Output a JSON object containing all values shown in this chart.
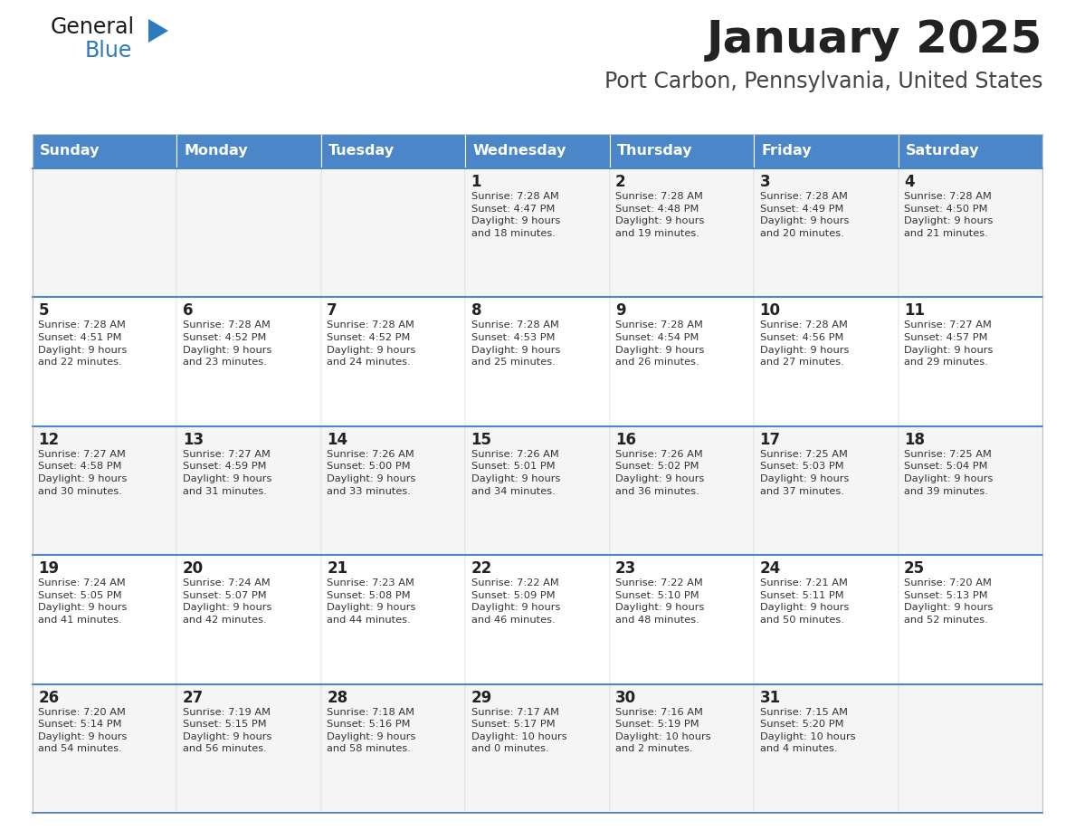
{
  "title": "January 2025",
  "subtitle": "Port Carbon, Pennsylvania, United States",
  "days_of_week": [
    "Sunday",
    "Monday",
    "Tuesday",
    "Wednesday",
    "Thursday",
    "Friday",
    "Saturday"
  ],
  "header_bg": "#4a86c8",
  "header_text_color": "#FFFFFF",
  "cell_bg_light": "#f5f5f5",
  "cell_bg_white": "#FFFFFF",
  "divider_color": "#4a86c8",
  "day_num_color": "#222222",
  "info_color": "#333333",
  "title_color": "#222222",
  "subtitle_color": "#444444",
  "logo_general_color": "#1a1a1a",
  "logo_blue_color": "#2e7abf",
  "logo_triangle_color": "#2e7abf",
  "calendar": [
    [
      {
        "day": "",
        "info": ""
      },
      {
        "day": "",
        "info": ""
      },
      {
        "day": "",
        "info": ""
      },
      {
        "day": "1",
        "info": "Sunrise: 7:28 AM\nSunset: 4:47 PM\nDaylight: 9 hours\nand 18 minutes."
      },
      {
        "day": "2",
        "info": "Sunrise: 7:28 AM\nSunset: 4:48 PM\nDaylight: 9 hours\nand 19 minutes."
      },
      {
        "day": "3",
        "info": "Sunrise: 7:28 AM\nSunset: 4:49 PM\nDaylight: 9 hours\nand 20 minutes."
      },
      {
        "day": "4",
        "info": "Sunrise: 7:28 AM\nSunset: 4:50 PM\nDaylight: 9 hours\nand 21 minutes."
      }
    ],
    [
      {
        "day": "5",
        "info": "Sunrise: 7:28 AM\nSunset: 4:51 PM\nDaylight: 9 hours\nand 22 minutes."
      },
      {
        "day": "6",
        "info": "Sunrise: 7:28 AM\nSunset: 4:52 PM\nDaylight: 9 hours\nand 23 minutes."
      },
      {
        "day": "7",
        "info": "Sunrise: 7:28 AM\nSunset: 4:52 PM\nDaylight: 9 hours\nand 24 minutes."
      },
      {
        "day": "8",
        "info": "Sunrise: 7:28 AM\nSunset: 4:53 PM\nDaylight: 9 hours\nand 25 minutes."
      },
      {
        "day": "9",
        "info": "Sunrise: 7:28 AM\nSunset: 4:54 PM\nDaylight: 9 hours\nand 26 minutes."
      },
      {
        "day": "10",
        "info": "Sunrise: 7:28 AM\nSunset: 4:56 PM\nDaylight: 9 hours\nand 27 minutes."
      },
      {
        "day": "11",
        "info": "Sunrise: 7:27 AM\nSunset: 4:57 PM\nDaylight: 9 hours\nand 29 minutes."
      }
    ],
    [
      {
        "day": "12",
        "info": "Sunrise: 7:27 AM\nSunset: 4:58 PM\nDaylight: 9 hours\nand 30 minutes."
      },
      {
        "day": "13",
        "info": "Sunrise: 7:27 AM\nSunset: 4:59 PM\nDaylight: 9 hours\nand 31 minutes."
      },
      {
        "day": "14",
        "info": "Sunrise: 7:26 AM\nSunset: 5:00 PM\nDaylight: 9 hours\nand 33 minutes."
      },
      {
        "day": "15",
        "info": "Sunrise: 7:26 AM\nSunset: 5:01 PM\nDaylight: 9 hours\nand 34 minutes."
      },
      {
        "day": "16",
        "info": "Sunrise: 7:26 AM\nSunset: 5:02 PM\nDaylight: 9 hours\nand 36 minutes."
      },
      {
        "day": "17",
        "info": "Sunrise: 7:25 AM\nSunset: 5:03 PM\nDaylight: 9 hours\nand 37 minutes."
      },
      {
        "day": "18",
        "info": "Sunrise: 7:25 AM\nSunset: 5:04 PM\nDaylight: 9 hours\nand 39 minutes."
      }
    ],
    [
      {
        "day": "19",
        "info": "Sunrise: 7:24 AM\nSunset: 5:05 PM\nDaylight: 9 hours\nand 41 minutes."
      },
      {
        "day": "20",
        "info": "Sunrise: 7:24 AM\nSunset: 5:07 PM\nDaylight: 9 hours\nand 42 minutes."
      },
      {
        "day": "21",
        "info": "Sunrise: 7:23 AM\nSunset: 5:08 PM\nDaylight: 9 hours\nand 44 minutes."
      },
      {
        "day": "22",
        "info": "Sunrise: 7:22 AM\nSunset: 5:09 PM\nDaylight: 9 hours\nand 46 minutes."
      },
      {
        "day": "23",
        "info": "Sunrise: 7:22 AM\nSunset: 5:10 PM\nDaylight: 9 hours\nand 48 minutes."
      },
      {
        "day": "24",
        "info": "Sunrise: 7:21 AM\nSunset: 5:11 PM\nDaylight: 9 hours\nand 50 minutes."
      },
      {
        "day": "25",
        "info": "Sunrise: 7:20 AM\nSunset: 5:13 PM\nDaylight: 9 hours\nand 52 minutes."
      }
    ],
    [
      {
        "day": "26",
        "info": "Sunrise: 7:20 AM\nSunset: 5:14 PM\nDaylight: 9 hours\nand 54 minutes."
      },
      {
        "day": "27",
        "info": "Sunrise: 7:19 AM\nSunset: 5:15 PM\nDaylight: 9 hours\nand 56 minutes."
      },
      {
        "day": "28",
        "info": "Sunrise: 7:18 AM\nSunset: 5:16 PM\nDaylight: 9 hours\nand 58 minutes."
      },
      {
        "day": "29",
        "info": "Sunrise: 7:17 AM\nSunset: 5:17 PM\nDaylight: 10 hours\nand 0 minutes."
      },
      {
        "day": "30",
        "info": "Sunrise: 7:16 AM\nSunset: 5:19 PM\nDaylight: 10 hours\nand 2 minutes."
      },
      {
        "day": "31",
        "info": "Sunrise: 7:15 AM\nSunset: 5:20 PM\nDaylight: 10 hours\nand 4 minutes."
      },
      {
        "day": "",
        "info": ""
      }
    ]
  ]
}
